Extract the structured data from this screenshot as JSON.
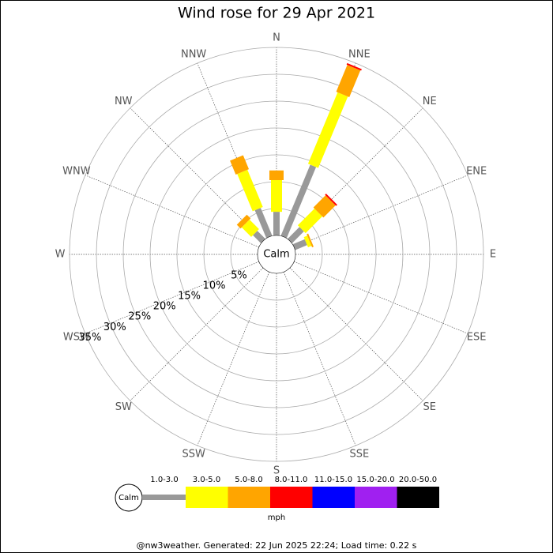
{
  "chart_data": {
    "type": "wind_rose",
    "title": "Wind rose for 29 Apr 2021",
    "directions": [
      "N",
      "NNE",
      "NE",
      "ENE",
      "E",
      "ESE",
      "SE",
      "SSE",
      "S",
      "SSW",
      "SW",
      "WSW",
      "W",
      "WNW",
      "NW",
      "NNW"
    ],
    "center_label": "Calm",
    "rlim": [
      0,
      35
    ],
    "rticks": [
      {
        "value": 5,
        "label": "5%"
      },
      {
        "value": 10,
        "label": "10%"
      },
      {
        "value": 15,
        "label": "15%"
      },
      {
        "value": 20,
        "label": "20%"
      },
      {
        "value": 25,
        "label": "25%"
      },
      {
        "value": 30,
        "label": "30%"
      },
      {
        "value": 35,
        "label": "35%"
      }
    ],
    "series": [
      {
        "name": "1.0-3.0",
        "color": "#999999",
        "values": [
          4.4,
          14.3,
          3.1,
          2.4,
          0,
          0,
          0,
          0,
          0,
          0,
          0,
          0,
          0,
          0,
          2.1,
          5.6
        ]
      },
      {
        "name": "3.0-5.0",
        "color": "#ffff00",
        "values": [
          5.9,
          14.4,
          4.4,
          0.7,
          0,
          0,
          0,
          0,
          0,
          0,
          0,
          0,
          0,
          0,
          2.5,
          7.5
        ]
      },
      {
        "name": "5.0-8.0",
        "color": "#ffa500",
        "values": [
          1.8,
          5.4,
          3.2,
          0.3,
          0,
          0,
          0,
          0,
          0,
          0,
          0,
          0,
          0,
          0,
          1.0,
          2.8
        ]
      },
      {
        "name": "8.0-11.0",
        "color": "#ff0000",
        "values": [
          0,
          0.3,
          0.3,
          0,
          0,
          0,
          0,
          0,
          0,
          0,
          0,
          0,
          0,
          0,
          0,
          0
        ]
      },
      {
        "name": "11.0-15.0",
        "color": "#0000ff",
        "values": [
          0,
          0,
          0,
          0,
          0,
          0,
          0,
          0,
          0,
          0,
          0,
          0,
          0,
          0,
          0,
          0
        ]
      },
      {
        "name": "15.0-20.0",
        "color": "#a020f0",
        "values": [
          0,
          0,
          0,
          0,
          0,
          0,
          0,
          0,
          0,
          0,
          0,
          0,
          0,
          0,
          0,
          0
        ]
      },
      {
        "name": "20.0-50.0",
        "color": "#000000",
        "values": [
          0,
          0,
          0,
          0,
          0,
          0,
          0,
          0,
          0,
          0,
          0,
          0,
          0,
          0,
          0,
          0
        ]
      }
    ],
    "legend_center_label": "Calm",
    "unit": "mph",
    "footer": "@nw3weather. Generated: 22 Jun 2025 22:24; Load time: 0.22 s"
  }
}
